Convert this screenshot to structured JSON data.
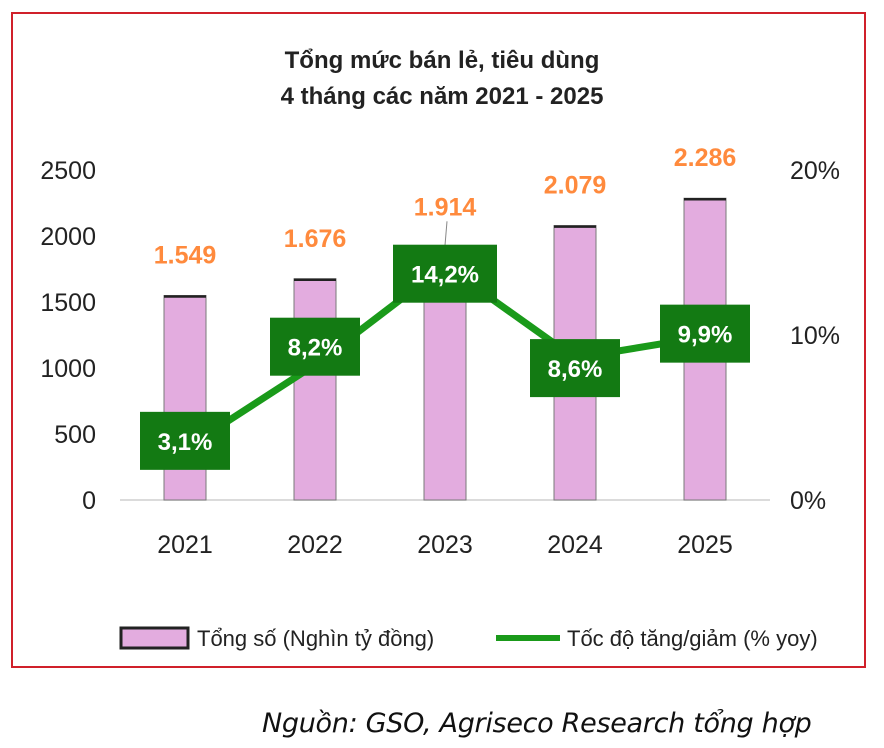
{
  "chart_data": {
    "type": "bar+line",
    "title_line1": "Tổng mức bán lẻ, tiêu dùng",
    "title_line2": "4 tháng các năm 2021 - 2025",
    "categories": [
      "2021",
      "2022",
      "2023",
      "2024",
      "2025"
    ],
    "bar_series": {
      "name": "Tổng số (Nghìn tỷ đồng)",
      "values": [
        1549,
        1676,
        1914,
        2079,
        2286
      ],
      "labels": [
        "1.549",
        "1.676",
        "1.914",
        "2.079",
        "2.286"
      ],
      "color": "#e3acdf"
    },
    "line_series": {
      "name": "Tốc độ tăng/giảm (% yoy)",
      "values": [
        3.1,
        8.2,
        14.2,
        8.6,
        9.9
      ],
      "labels": [
        "3,1%",
        "8,2%",
        "14,2%",
        "8,6%",
        "9,9%"
      ],
      "color": "#1a9a1a"
    },
    "y_left": {
      "min": 0,
      "max": 2500,
      "ticks": [
        0,
        500,
        1000,
        1500,
        2000,
        2500
      ],
      "tick_labels": [
        "0",
        "500",
        "1000",
        "1500",
        "2000",
        "2500"
      ]
    },
    "y_right": {
      "min": 0,
      "max": 20,
      "ticks": [
        0,
        10,
        20
      ],
      "tick_labels": [
        "0%",
        "10%",
        "20%"
      ]
    },
    "label_color": "#ff8a3d",
    "point_label_box": "#137a13"
  },
  "source_note": "Nguồn: GSO, Agriseco Research tổng hợp"
}
